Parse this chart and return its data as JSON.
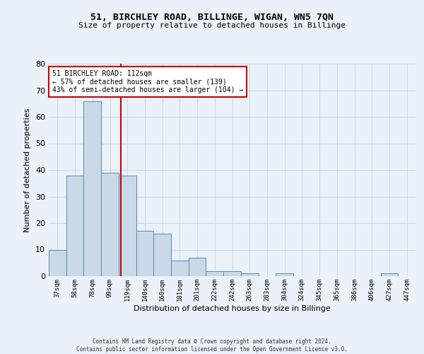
{
  "title1": "51, BIRCHLEY ROAD, BILLINGE, WIGAN, WN5 7QN",
  "title2": "Size of property relative to detached houses in Billinge",
  "xlabel": "Distribution of detached houses by size in Billinge",
  "ylabel": "Number of detached properties",
  "categories": [
    "37sqm",
    "58sqm",
    "78sqm",
    "99sqm",
    "119sqm",
    "140sqm",
    "160sqm",
    "181sqm",
    "201sqm",
    "222sqm",
    "242sqm",
    "263sqm",
    "283sqm",
    "304sqm",
    "324sqm",
    "345sqm",
    "365sqm",
    "386sqm",
    "406sqm",
    "427sqm",
    "447sqm"
  ],
  "values": [
    10,
    38,
    66,
    39,
    38,
    17,
    16,
    6,
    7,
    2,
    2,
    1,
    0,
    1,
    0,
    0,
    0,
    0,
    0,
    1,
    0
  ],
  "bar_color": "#c9d9e8",
  "bar_edge_color": "#5a8ab0",
  "grid_color": "#c8d8e8",
  "background_color": "#eaf1f8",
  "vline_index": 3.62,
  "annotation_text": "51 BIRCHLEY ROAD: 112sqm\n← 57% of detached houses are smaller (139)\n43% of semi-detached houses are larger (104) →",
  "annotation_box_color": "#ffffff",
  "annotation_box_edge_color": "#cc0000",
  "vline_color": "#cc0000",
  "ylim": [
    0,
    80
  ],
  "yticks": [
    0,
    10,
    20,
    30,
    40,
    50,
    60,
    70,
    80
  ],
  "footer": "Contains HM Land Registry data © Crown copyright and database right 2024.\nContains public sector information licensed under the Open Government Licence v3.0."
}
